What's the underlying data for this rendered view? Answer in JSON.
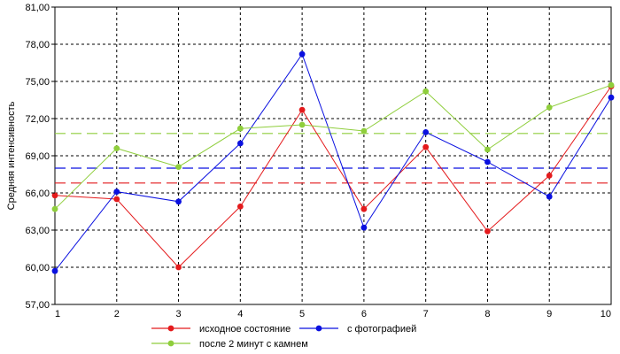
{
  "chart_data": {
    "type": "line",
    "title": "",
    "xlabel": "",
    "ylabel": "Средняя интенсивность",
    "x": [
      1,
      2,
      3,
      4,
      5,
      6,
      7,
      8,
      9,
      10
    ],
    "xlim": [
      1,
      10
    ],
    "ylim": [
      57,
      81
    ],
    "y_ticks": [
      "57,00",
      "60,00",
      "63,00",
      "66,00",
      "69,00",
      "72,00",
      "75,00",
      "78,00",
      "81,00"
    ],
    "x_ticks": [
      "1",
      "2",
      "3",
      "4",
      "5",
      "6",
      "7",
      "8",
      "9",
      "10"
    ],
    "grid": true,
    "legend_position": "bottom",
    "series": [
      {
        "name": "исходное состояние",
        "color": "#e41a1c",
        "values": [
          65.8,
          65.5,
          60.0,
          64.9,
          72.7,
          64.7,
          69.7,
          62.9,
          67.4,
          74.6
        ],
        "mean": 66.8
      },
      {
        "name": "с фотографией",
        "color": "#0a10e0",
        "values": [
          59.7,
          66.1,
          65.3,
          70.0,
          77.2,
          63.2,
          70.9,
          68.5,
          65.7,
          73.7
        ],
        "mean": 68.0
      },
      {
        "name": "после 2 минут с камнем",
        "color": "#8fce3c",
        "values": [
          64.7,
          69.6,
          68.1,
          71.2,
          71.5,
          71.0,
          74.2,
          69.5,
          72.9,
          74.7
        ],
        "mean": 70.8
      }
    ]
  }
}
